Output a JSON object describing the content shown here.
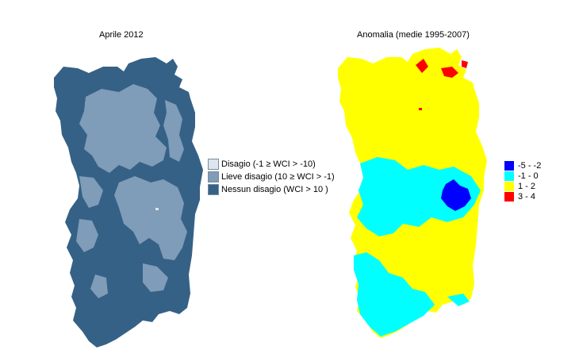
{
  "left_map": {
    "title": "Aprile 2012",
    "legend": [
      {
        "label": "Disagio (-1 ≥ WCI > -10)",
        "color": "#dde6ee"
      },
      {
        "label": "Lieve disagio (10 ≥ WCI > -1)",
        "color": "#7f9cb8"
      },
      {
        "label": "Nessun disagio (WCI > 10 )",
        "color": "#356186"
      }
    ]
  },
  "right_map": {
    "title": "Anomalia (medie 1995-2007)",
    "legend": [
      {
        "label": "-5 - -2",
        "color": "#0000ff"
      },
      {
        "label": "-1 - 0",
        "color": "#00ffff"
      },
      {
        "label": "1 - 2",
        "color": "#ffff00"
      },
      {
        "label": "3 - 4",
        "color": "#ff0000"
      }
    ]
  }
}
